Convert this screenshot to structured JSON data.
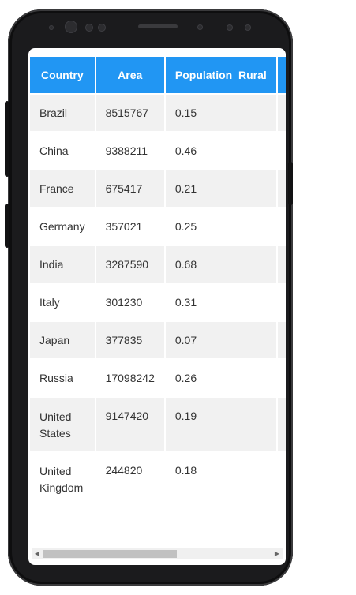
{
  "table": {
    "headers": [
      "Country",
      "Area",
      "Population_Rural",
      ""
    ],
    "rows": [
      {
        "country": "Brazil",
        "area": "8515767",
        "rural": "0.15"
      },
      {
        "country": "China",
        "area": "9388211",
        "rural": "0.46"
      },
      {
        "country": "France",
        "area": "675417",
        "rural": "0.21"
      },
      {
        "country": "Germany",
        "area": "357021",
        "rural": "0.25"
      },
      {
        "country": "India",
        "area": "3287590",
        "rural": "0.68"
      },
      {
        "country": "Italy",
        "area": "301230",
        "rural": "0.31"
      },
      {
        "country": "Japan",
        "area": "377835",
        "rural": "0.07"
      },
      {
        "country": "Russia",
        "area": "17098242",
        "rural": "0.26"
      },
      {
        "country": "United States",
        "area": "9147420",
        "rural": "0.19"
      },
      {
        "country": "United Kingdom",
        "area": "244820",
        "rural": "0.18"
      }
    ]
  },
  "colors": {
    "header": "#2196f3",
    "row_alt": "#f1f1f1"
  },
  "icons": {
    "scroll_left": "left-arrow-icon",
    "scroll_right": "right-arrow-icon"
  }
}
